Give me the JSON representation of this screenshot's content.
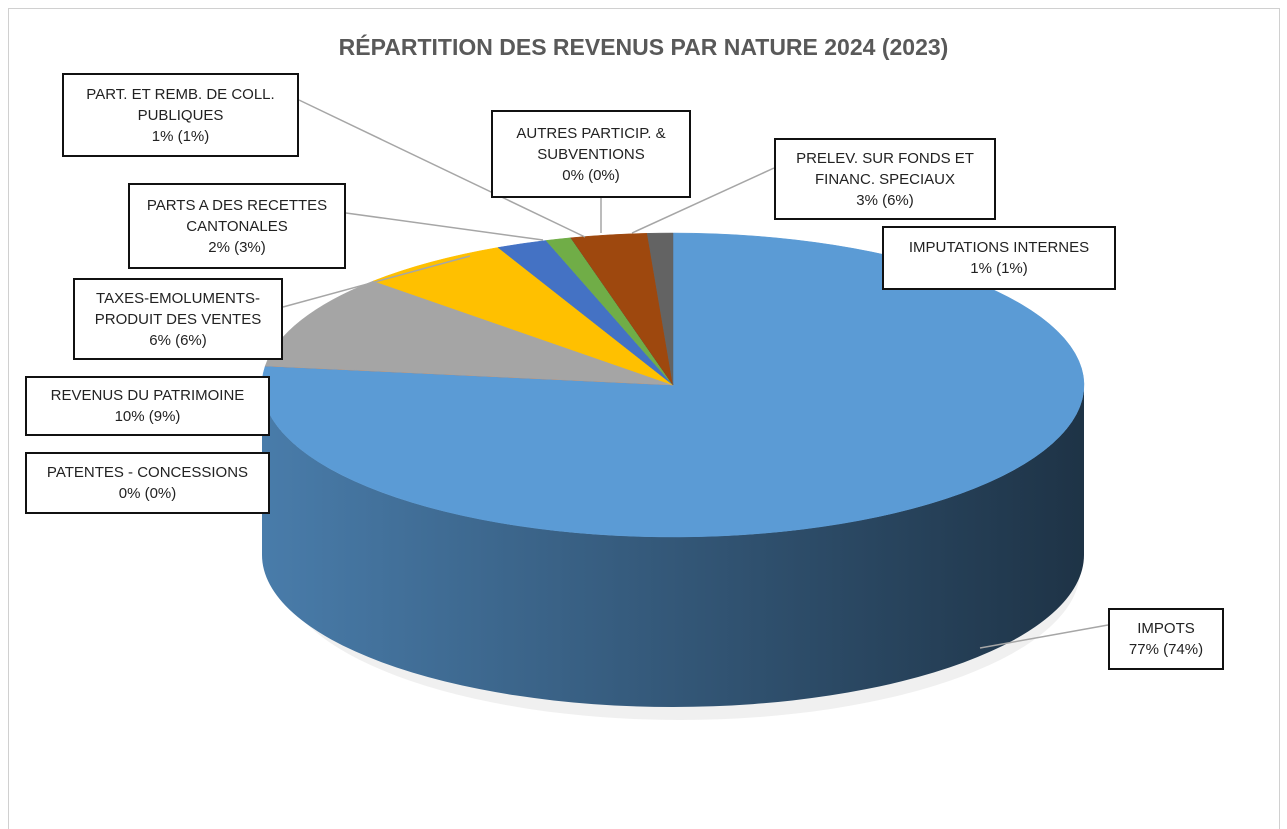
{
  "chart_data": {
    "type": "pie",
    "title": "RÉPARTITION DES REVENUS PAR NATURE 2024 (2023)",
    "categories": [
      "IMPOTS",
      "PATENTES - CONCESSIONS",
      "REVENUS DU PATRIMOINE",
      "TAXES-EMOLUMENTS-PRODUIT DES VENTES",
      "PARTS A DES RECETTES CANTONALES",
      "PART. ET REMB. DE COLL. PUBLIQUES",
      "AUTRES PARTICIP. & SUBVENTIONS",
      "PRELEV. SUR FONDS ET FINANC. SPECIAUX",
      "IMPUTATIONS INTERNES"
    ],
    "values": [
      77,
      0,
      10,
      6,
      2,
      1,
      0,
      3,
      1
    ],
    "value_labels": [
      "77% (74%)",
      "0% (0%)",
      "10% (9%)",
      "6% (6%)",
      "2% (3%)",
      "1% (1%)",
      "0% (0%)",
      "3% (6%)",
      "1% (1%)"
    ],
    "colors": [
      "#5b9bd5",
      "#ed7d31",
      "#a5a5a5",
      "#ffc000",
      "#4472c4",
      "#70ad47",
      "#264478",
      "#9e480e",
      "#636363"
    ]
  }
}
